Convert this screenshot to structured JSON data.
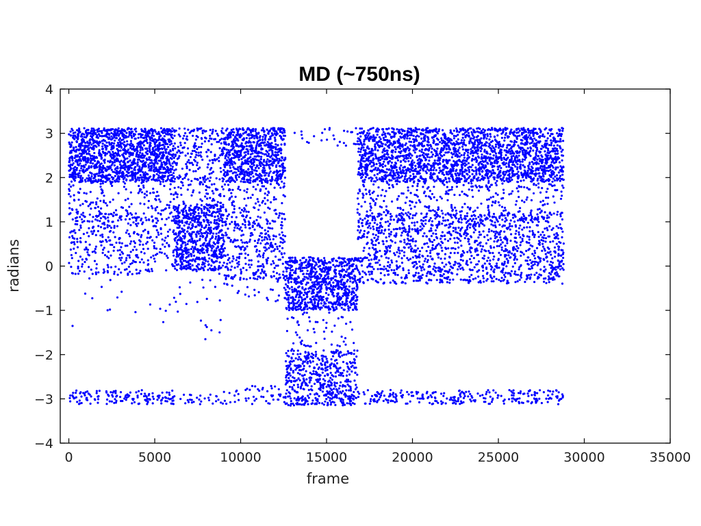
{
  "chart_data": {
    "type": "scatter",
    "title": "MD (~750ns)",
    "xlabel": "frame",
    "ylabel": "radians",
    "xlim": [
      -500,
      35000
    ],
    "ylim": [
      -4,
      4
    ],
    "xticks": [
      0,
      5000,
      10000,
      15000,
      20000,
      25000,
      30000,
      35000
    ],
    "xtick_labels": [
      "0",
      "5000",
      "10000",
      "15000",
      "20000",
      "25000",
      "30000",
      "35000"
    ],
    "yticks": [
      4,
      3,
      2,
      1,
      0,
      -1,
      -2,
      -3,
      -4
    ],
    "ytick_labels": [
      "4",
      "3",
      "2",
      "1",
      "0",
      "−1",
      "−2",
      "−3",
      "−4"
    ],
    "grid": false,
    "legend": "none",
    "marker_color": "#0000ff",
    "series": [
      {
        "frames_total": 28800,
        "regions": [
          {
            "x": [
              0,
              6100
            ],
            "states": [
              {
                "y": [
                  1.9,
                  3.12
                ],
                "weight": 0.62
              },
              {
                "y": [
                  -0.2,
                  1.2
                ],
                "weight": 0.14
              },
              {
                "y": [
                  1.0,
                  2.0
                ],
                "weight": 0.08
              },
              {
                "y": [
                  -3.12,
                  -2.8
                ],
                "weight": 0.06
              },
              {
                "y": [
                  -1.5,
                  3.1
                ],
                "weight": 0.03
              }
            ]
          },
          {
            "x": [
              6100,
              9000
            ],
            "states": [
              {
                "y": [
                  -0.1,
                  1.4
                ],
                "weight": 0.62
              },
              {
                "y": [
                  1.9,
                  3.12
                ],
                "weight": 0.22
              },
              {
                "y": [
                  1.3,
                  2.0
                ],
                "weight": 0.08
              },
              {
                "y": [
                  -3.12,
                  -2.9
                ],
                "weight": 0.03
              },
              {
                "y": [
                  -1.7,
                  0.0
                ],
                "weight": 0.02
              }
            ]
          },
          {
            "x": [
              9000,
              12600
            ],
            "states": [
              {
                "y": [
                  1.9,
                  3.12
                ],
                "weight": 0.55
              },
              {
                "y": [
                  -0.3,
                  1.2
                ],
                "weight": 0.28
              },
              {
                "y": [
                  1.2,
                  2.0
                ],
                "weight": 0.08
              },
              {
                "y": [
                  -3.12,
                  -2.7
                ],
                "weight": 0.04
              },
              {
                "y": [
                  -0.8,
                  -0.2
                ],
                "weight": 0.03
              }
            ]
          },
          {
            "x": [
              12600,
              16800
            ],
            "states": [
              {
                "y": [
                  -1.0,
                  0.2
                ],
                "weight": 0.55
              },
              {
                "y": [
                  -3.15,
                  -1.9
                ],
                "weight": 0.38
              },
              {
                "y": [
                  2.7,
                  3.12
                ],
                "weight": 0.02
              },
              {
                "y": [
                  -1.9,
                  -1.0
                ],
                "weight": 0.04
              }
            ]
          },
          {
            "x": [
              16800,
              28800
            ],
            "states": [
              {
                "y": [
                  1.9,
                  3.12
                ],
                "weight": 0.5
              },
              {
                "y": [
                  -0.4,
                  1.2
                ],
                "weight": 0.3
              },
              {
                "y": [
                  1.0,
                  2.0
                ],
                "weight": 0.1
              },
              {
                "y": [
                  -3.12,
                  -2.8
                ],
                "weight": 0.06
              }
            ]
          }
        ]
      }
    ]
  }
}
